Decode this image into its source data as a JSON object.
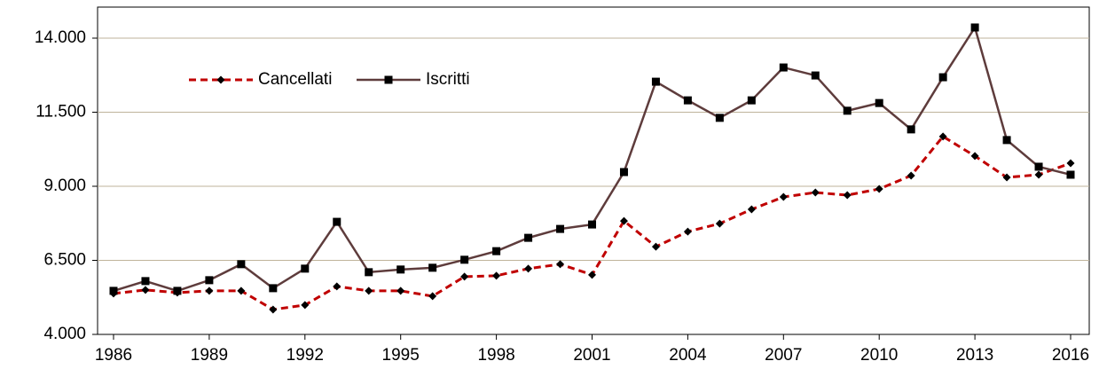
{
  "chart_data": {
    "type": "line",
    "x": [
      1986,
      1987,
      1988,
      1989,
      1990,
      1991,
      1992,
      1993,
      1994,
      1995,
      1996,
      1997,
      1998,
      1999,
      2000,
      2001,
      2002,
      2003,
      2004,
      2005,
      2006,
      2007,
      2008,
      2009,
      2010,
      2011,
      2012,
      2013,
      2014,
      2015,
      2016
    ],
    "series": [
      {
        "name": "Cancellati",
        "color": "#c00000",
        "values": [
          5380,
          5500,
          5410,
          5470,
          5470,
          4840,
          4990,
          5620,
          5470,
          5470,
          5290,
          5950,
          5980,
          6220,
          6370,
          6010,
          7830,
          6960,
          7470,
          7740,
          8220,
          8640,
          8790,
          8700,
          8910,
          9360,
          10680,
          10020,
          9300,
          9390,
          9780
        ]
      },
      {
        "name": "Iscritti",
        "color": "#5e3c3c",
        "values": [
          5470,
          5800,
          5470,
          5830,
          6370,
          5560,
          6220,
          7800,
          6100,
          6190,
          6250,
          6520,
          6810,
          7260,
          7560,
          7710,
          9480,
          12530,
          11900,
          11310,
          11900,
          13010,
          12740,
          11550,
          11810,
          10920,
          12680,
          14360,
          10560,
          9660,
          9390
        ]
      }
    ],
    "xlim": [
      1986,
      2016
    ],
    "xticks": [
      1986,
      1989,
      1992,
      1995,
      1998,
      2001,
      2004,
      2007,
      2010,
      2013,
      2016
    ],
    "ylim": [
      4000,
      14000
    ],
    "yticks": [
      {
        "value": 4000,
        "label": "4.000"
      },
      {
        "value": 6500,
        "label": "6.500"
      },
      {
        "value": 9000,
        "label": "9.000"
      },
      {
        "value": 11500,
        "label": "11.500"
      },
      {
        "value": 14000,
        "label": "14.000"
      }
    ],
    "grid": true,
    "legend": "top-left"
  }
}
